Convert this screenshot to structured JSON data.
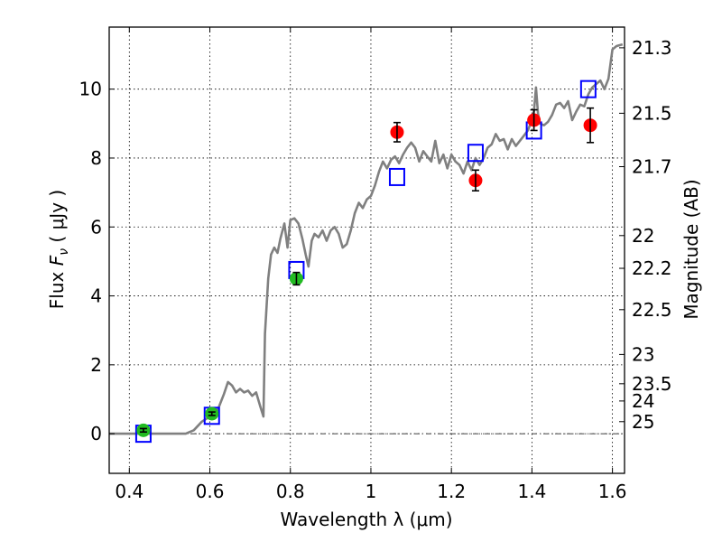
{
  "chart_data": {
    "type": "scatter",
    "xlabel": "Wavelength  λ (μm)",
    "ylabel": "Flux  F_ν ( μJy )",
    "ylabel_parts": {
      "prefix": "Flux  ",
      "symbol": "F",
      "subscript": "ν",
      "suffix": " ( μJy )"
    },
    "ylabel_right": "Magnitude (AB)",
    "xlim": [
      0.35,
      1.63
    ],
    "ylim": [
      -1.15,
      11.8
    ],
    "x_ticks": [
      0.4,
      0.6,
      0.8,
      1.0,
      1.2,
      1.4,
      1.6
    ],
    "x_tick_labels": [
      "0.4",
      "0.6",
      "0.8",
      "1",
      "1.2",
      "1.4",
      "1.6"
    ],
    "y_ticks": [
      0,
      2,
      4,
      6,
      8,
      10
    ],
    "y_tick_labels": [
      "0",
      "2",
      "4",
      "6",
      "8",
      "10"
    ],
    "right_ticks": [
      {
        "label": "21.3",
        "flux": 11.2
      },
      {
        "label": "21.5",
        "flux": 9.3
      },
      {
        "label": "21.7",
        "flux": 7.75
      },
      {
        "label": "22",
        "flux": 5.75
      },
      {
        "label": "22.2",
        "flux": 4.8
      },
      {
        "label": "22.5",
        "flux": 3.6
      },
      {
        "label": "23",
        "flux": 2.3
      },
      {
        "label": "23.5",
        "flux": 1.45
      },
      {
        "label": "24",
        "flux": 0.95
      },
      {
        "label": "25",
        "flux": 0.35
      }
    ],
    "grid": true,
    "zero_line": true,
    "colors": {
      "model": "#808080",
      "model_photometry": "#0000ff",
      "observed_red": "#ff0000",
      "observed_green": "#22bb22",
      "errorbar": "#000000"
    },
    "series": [
      {
        "type": "line",
        "points": [
          [
            0.35,
            0.0
          ],
          [
            0.4,
            0.0
          ],
          [
            0.45,
            0.0
          ],
          [
            0.5,
            0.0
          ],
          [
            0.54,
            0.0
          ],
          [
            0.56,
            0.1
          ],
          [
            0.58,
            0.35
          ],
          [
            0.6,
            0.5
          ],
          [
            0.62,
            0.7
          ],
          [
            0.635,
            1.15
          ],
          [
            0.645,
            1.5
          ],
          [
            0.655,
            1.4
          ],
          [
            0.665,
            1.2
          ],
          [
            0.675,
            1.3
          ],
          [
            0.685,
            1.2
          ],
          [
            0.695,
            1.25
          ],
          [
            0.705,
            1.1
          ],
          [
            0.715,
            1.2
          ],
          [
            0.725,
            0.8
          ],
          [
            0.733,
            0.5
          ],
          [
            0.737,
            2.9
          ],
          [
            0.745,
            4.5
          ],
          [
            0.752,
            5.2
          ],
          [
            0.76,
            5.4
          ],
          [
            0.768,
            5.25
          ],
          [
            0.775,
            5.65
          ],
          [
            0.785,
            6.1
          ],
          [
            0.793,
            5.4
          ],
          [
            0.8,
            6.2
          ],
          [
            0.81,
            6.25
          ],
          [
            0.82,
            6.1
          ],
          [
            0.83,
            5.65
          ],
          [
            0.838,
            5.2
          ],
          [
            0.845,
            4.85
          ],
          [
            0.853,
            5.6
          ],
          [
            0.86,
            5.8
          ],
          [
            0.87,
            5.7
          ],
          [
            0.88,
            5.9
          ],
          [
            0.89,
            5.6
          ],
          [
            0.9,
            5.9
          ],
          [
            0.91,
            6.0
          ],
          [
            0.92,
            5.8
          ],
          [
            0.93,
            5.4
          ],
          [
            0.94,
            5.5
          ],
          [
            0.95,
            5.9
          ],
          [
            0.96,
            6.4
          ],
          [
            0.97,
            6.7
          ],
          [
            0.98,
            6.55
          ],
          [
            0.99,
            6.8
          ],
          [
            1.0,
            6.9
          ],
          [
            1.01,
            7.2
          ],
          [
            1.02,
            7.6
          ],
          [
            1.03,
            7.9
          ],
          [
            1.04,
            7.7
          ],
          [
            1.05,
            7.95
          ],
          [
            1.06,
            8.05
          ],
          [
            1.07,
            7.85
          ],
          [
            1.08,
            8.1
          ],
          [
            1.09,
            8.3
          ],
          [
            1.1,
            8.45
          ],
          [
            1.11,
            8.3
          ],
          [
            1.12,
            7.9
          ],
          [
            1.13,
            8.2
          ],
          [
            1.14,
            8.05
          ],
          [
            1.15,
            7.9
          ],
          [
            1.16,
            8.5
          ],
          [
            1.17,
            7.85
          ],
          [
            1.18,
            8.1
          ],
          [
            1.19,
            7.7
          ],
          [
            1.2,
            8.1
          ],
          [
            1.21,
            7.9
          ],
          [
            1.22,
            7.8
          ],
          [
            1.23,
            7.55
          ],
          [
            1.24,
            7.9
          ],
          [
            1.25,
            7.65
          ],
          [
            1.26,
            8.0
          ],
          [
            1.27,
            7.8
          ],
          [
            1.28,
            8.0
          ],
          [
            1.29,
            8.3
          ],
          [
            1.3,
            8.4
          ],
          [
            1.31,
            8.7
          ],
          [
            1.32,
            8.5
          ],
          [
            1.33,
            8.55
          ],
          [
            1.34,
            8.25
          ],
          [
            1.35,
            8.55
          ],
          [
            1.36,
            8.35
          ],
          [
            1.37,
            8.5
          ],
          [
            1.38,
            8.65
          ],
          [
            1.39,
            8.8
          ],
          [
            1.4,
            9.1
          ],
          [
            1.405,
            9.35
          ],
          [
            1.41,
            10.05
          ],
          [
            1.415,
            9.3
          ],
          [
            1.42,
            9.0
          ],
          [
            1.43,
            8.95
          ],
          [
            1.44,
            9.05
          ],
          [
            1.45,
            9.25
          ],
          [
            1.46,
            9.55
          ],
          [
            1.47,
            9.6
          ],
          [
            1.48,
            9.45
          ],
          [
            1.49,
            9.65
          ],
          [
            1.5,
            9.1
          ],
          [
            1.51,
            9.35
          ],
          [
            1.52,
            9.55
          ],
          [
            1.53,
            9.5
          ],
          [
            1.54,
            9.85
          ],
          [
            1.55,
            10.05
          ],
          [
            1.56,
            10.15
          ],
          [
            1.57,
            10.25
          ],
          [
            1.58,
            10.0
          ],
          [
            1.59,
            10.3
          ],
          [
            1.6,
            11.15
          ],
          [
            1.61,
            11.25
          ],
          [
            1.625,
            11.3
          ]
        ]
      },
      {
        "type": "scatter",
        "marker": "square",
        "points": [
          [
            0.435,
            0.0
          ],
          [
            0.605,
            0.52
          ],
          [
            0.815,
            4.75
          ],
          [
            1.065,
            7.45
          ],
          [
            1.26,
            8.15
          ],
          [
            1.405,
            8.8
          ],
          [
            1.54,
            10.0
          ]
        ]
      },
      {
        "type": "scatter",
        "marker": "circle",
        "color": "green",
        "points": [
          {
            "x": 0.435,
            "y": 0.1,
            "err": 0.05
          },
          {
            "x": 0.605,
            "y": 0.58,
            "err": 0.05
          },
          {
            "x": 0.815,
            "y": 4.5,
            "err": 0.18
          }
        ]
      },
      {
        "type": "scatter",
        "marker": "circle",
        "color": "red",
        "points": [
          {
            "x": 1.065,
            "y": 8.75,
            "err": 0.28
          },
          {
            "x": 1.26,
            "y": 7.35,
            "err": 0.3
          },
          {
            "x": 1.405,
            "y": 9.1,
            "err": 0.3
          },
          {
            "x": 1.545,
            "y": 8.95,
            "err": 0.5
          }
        ]
      }
    ]
  }
}
